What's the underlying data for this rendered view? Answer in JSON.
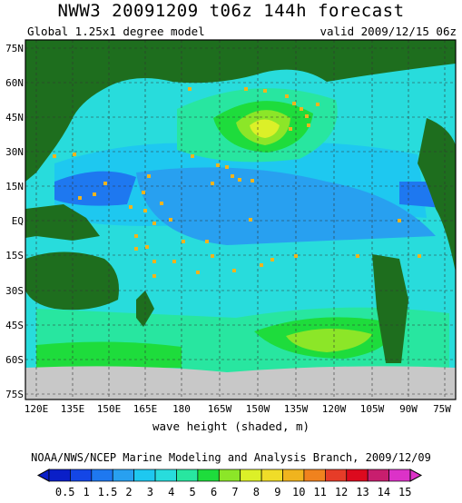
{
  "header": {
    "title": "NWW3 20091209 t06z 144h forecast",
    "model": "Global 1.25x1 degree model",
    "valid": "valid 2009/12/15 06z"
  },
  "axes": {
    "lat_labels": [
      "75N",
      "60N",
      "45N",
      "30N",
      "15N",
      "EQ",
      "15S",
      "30S",
      "45S",
      "60S",
      "75S"
    ],
    "lon_labels": [
      "120E",
      "135E",
      "150E",
      "165E",
      "180",
      "165W",
      "150W",
      "135W",
      "120W",
      "105W",
      "90W",
      "75W"
    ]
  },
  "xlabel": "wave height (shaded, m)",
  "credit": "NOAA/NWS/NCEP Marine Modeling and Analysis Branch, 2009/12/09",
  "colorbar": {
    "ticks": [
      "0.5",
      "1",
      "1.5",
      "2",
      "3",
      "4",
      "5",
      "6",
      "7",
      "8",
      "9",
      "10",
      "11",
      "12",
      "13",
      "14",
      "15"
    ],
    "colors": [
      "#0a1fc8",
      "#1446e6",
      "#1e78f0",
      "#28a0f0",
      "#1ec8f0",
      "#28dcdc",
      "#28e6a0",
      "#1edc3c",
      "#8ce628",
      "#dcf028",
      "#f0dc28",
      "#f0b41e",
      "#f0821e",
      "#e63c28",
      "#dc0a1e",
      "#c81e6e",
      "#dc32c8"
    ],
    "land": "#1e6e1e",
    "ice": "#c8c8c8"
  }
}
